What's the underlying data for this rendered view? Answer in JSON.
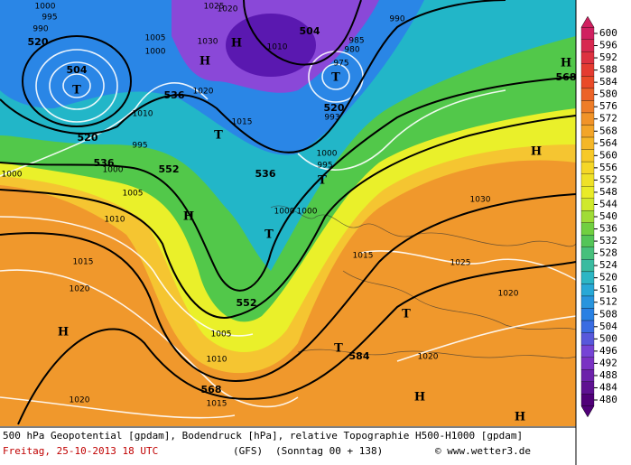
{
  "map": {
    "contour_labels": [
      "520",
      "504",
      "520",
      "536",
      "552",
      "536",
      "504",
      "520",
      "536",
      "552",
      "568",
      "584",
      "568"
    ],
    "pressure_labels": [
      "1000",
      "995",
      "990",
      "1005",
      "1000",
      "1025",
      "1020",
      "1030",
      "1010",
      "1020",
      "1015",
      "1010",
      "995",
      "1000",
      "1005",
      "1010",
      "1015",
      "1020",
      "1020",
      "990",
      "985",
      "980",
      "975",
      "993",
      "1000",
      "995",
      "1000",
      "1000",
      "1030",
      "1015",
      "1025",
      "1020",
      "1020",
      "1005",
      "1010",
      "1015",
      "1000"
    ],
    "centers": [
      "H",
      "H",
      "T",
      "T",
      "T",
      "T",
      "H",
      "T",
      "H",
      "T",
      "T",
      "H",
      "H",
      "H",
      "H"
    ]
  },
  "legend": {
    "ticks": [
      600,
      596,
      592,
      588,
      584,
      580,
      576,
      572,
      568,
      564,
      560,
      556,
      552,
      548,
      544,
      540,
      536,
      532,
      528,
      524,
      520,
      516,
      512,
      508,
      504,
      500,
      496,
      492,
      488,
      484,
      480
    ]
  },
  "footer": {
    "description": "500 hPa Geopotential [gpdam], Bodendruck [hPa], relative Topographie H500-H1000 [gpdam]",
    "date": "Freitag, 25-10-2013  18 UTC",
    "model": "(GFS)",
    "run": "(Sonntag 00 + 138)",
    "credit": "© www.wetter3.de"
  }
}
